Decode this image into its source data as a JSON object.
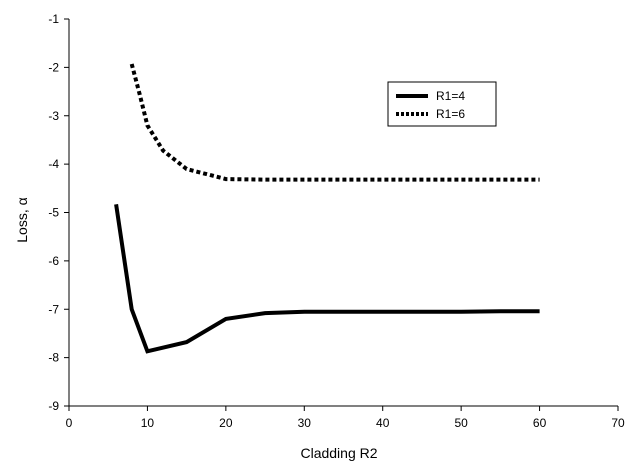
{
  "chart_data": {
    "type": "line",
    "title": "",
    "xlabel": "Cladding R2",
    "ylabel": "Loss, α",
    "xlim": [
      0,
      70
    ],
    "ylim": [
      -9,
      -1
    ],
    "xticks": [
      "0",
      "10",
      "20",
      "30",
      "40",
      "50",
      "60",
      "70"
    ],
    "yticks": [
      "-1",
      "-2",
      "-3",
      "-4",
      "-5",
      "-6",
      "-7",
      "-8",
      "-9"
    ],
    "grid": false,
    "legend_position": "top-right",
    "series": [
      {
        "name": "R1=4",
        "style": "solid",
        "color": "#000000",
        "x": [
          6,
          8,
          10,
          15,
          20,
          25,
          30,
          35,
          40,
          45,
          50,
          55,
          60
        ],
        "y": [
          -4.83,
          -7.0,
          -7.87,
          -7.68,
          -7.2,
          -7.08,
          -7.05,
          -7.05,
          -7.05,
          -7.05,
          -7.05,
          -7.04,
          -7.04
        ]
      },
      {
        "name": "R1=6",
        "style": "dotted",
        "color": "#000000",
        "x": [
          8,
          9,
          10,
          12,
          15,
          20,
          25,
          30,
          35,
          40,
          45,
          50,
          55,
          60
        ],
        "y": [
          -1.93,
          -2.55,
          -3.2,
          -3.72,
          -4.1,
          -4.31,
          -4.32,
          -4.32,
          -4.32,
          -4.32,
          -4.32,
          -4.32,
          -4.32,
          -4.32
        ]
      }
    ]
  }
}
